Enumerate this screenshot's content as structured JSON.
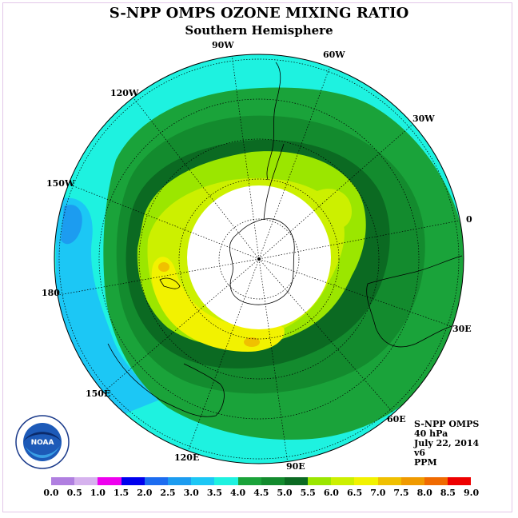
{
  "title": "S-NPP OMPS OZONE MIXING RATIO",
  "subtitle": "Southern Hemisphere",
  "longitude_labels": {
    "lon_90w": "90W",
    "lon_60w": "60W",
    "lon_120w": "120W",
    "lon_30w": "30W",
    "lon_150w": "150W",
    "lon_0": "0",
    "lon_180": "180",
    "lon_30e": "30E",
    "lon_150e": "150E",
    "lon_60e": "60E",
    "lon_120e": "120E",
    "lon_90e": "90E"
  },
  "info": {
    "instrument": "S-NPP OMPS",
    "level": "40 hPa",
    "date": "July 22, 2014",
    "version": "v6",
    "units": "PPM"
  },
  "colorbar": {
    "ticks": [
      "0.0",
      "0.5",
      "1.0",
      "1.5",
      "2.0",
      "2.5",
      "3.0",
      "3.5",
      "4.0",
      "4.5",
      "5.0",
      "5.5",
      "6.0",
      "6.5",
      "7.0",
      "7.5",
      "8.0",
      "8.5",
      "9.0"
    ],
    "colors": [
      "#b07fe0",
      "#d6b2ee",
      "#ee00ee",
      "#0000ee",
      "#1c6cf0",
      "#1c9cf0",
      "#1cc7f5",
      "#1ef2e0",
      "#1aa33a",
      "#138b2e",
      "#0b6a22",
      "#9be600",
      "#ccf000",
      "#f2f200",
      "#f0c000",
      "#f09a00",
      "#f06a00",
      "#ee0000",
      "#8a5a3a"
    ]
  },
  "logo_text": "NOAA",
  "colors": {
    "background": "#ffffff",
    "frame": "#e3c7e8",
    "polar_night": "#ffffff"
  }
}
